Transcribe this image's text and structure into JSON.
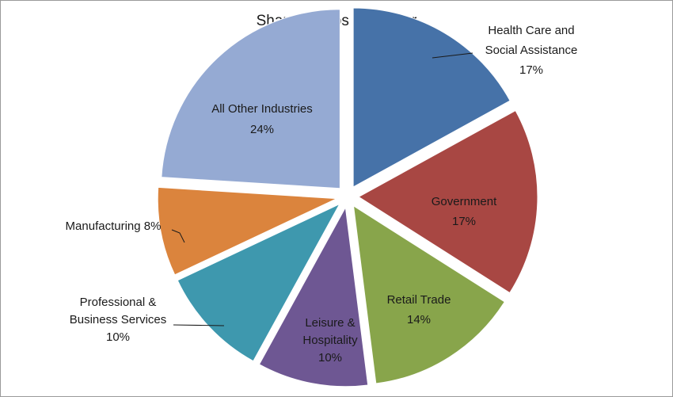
{
  "chart_data": {
    "type": "pie",
    "title": "Share of Jobs by Sector",
    "legend": "none (data labels on slices)",
    "slices": [
      {
        "name": "Health Care and Social Assistance",
        "label_lines": [
          "Health Care and",
          "Social Assistance",
          "17%"
        ],
        "value": 17,
        "color": "#4672A8"
      },
      {
        "name": "Government",
        "label_lines": [
          "Government",
          "17%"
        ],
        "value": 17,
        "color": "#A84743"
      },
      {
        "name": "Retail Trade",
        "label_lines": [
          "Retail Trade",
          "14%"
        ],
        "value": 14,
        "color": "#88A54B"
      },
      {
        "name": "Leisure & Hospitality",
        "label_lines": [
          "Leisure &",
          "Hospitality",
          "10%"
        ],
        "value": 10,
        "color": "#6E5793"
      },
      {
        "name": "Professional & Business Services",
        "label_lines": [
          "Professional &",
          "Business Services",
          "10%"
        ],
        "value": 10,
        "color": "#3E98AE"
      },
      {
        "name": "Manufacturing",
        "label_lines": [
          "Manufacturing 8%"
        ],
        "value": 8,
        "color": "#DB843D"
      },
      {
        "name": "All Other Industries",
        "label_lines": [
          "All Other Industries",
          "24%"
        ],
        "value": 24,
        "color": "#95AAD3"
      }
    ]
  }
}
